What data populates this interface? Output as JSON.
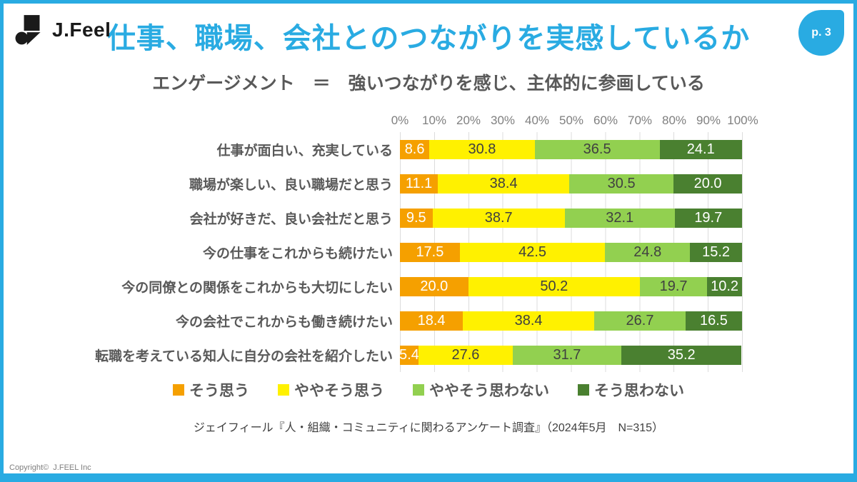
{
  "header": {
    "logo_text": "J.Feel",
    "title": "仕事、職場、会社とのつながりを実感しているか",
    "page_badge": "p. 3"
  },
  "subtitle": "エンゲージメント　＝　強いつながりを感じ、主体的に参画している",
  "chart_data": {
    "type": "bar",
    "orientation": "horizontal",
    "stacked": true,
    "unit": "%",
    "title": "仕事、職場、会社とのつながりを実感しているか",
    "xlim": [
      0,
      100
    ],
    "x_ticks": [
      "0%",
      "10%",
      "20%",
      "30%",
      "40%",
      "50%",
      "60%",
      "70%",
      "80%",
      "90%",
      "100%"
    ],
    "grid": true,
    "legend_position": "bottom",
    "value_label_decimals": 1,
    "categories": [
      "仕事が面白い、充実している",
      "職場が楽しい、良い職場だと思う",
      "会社が好きだ、良い会社だと思う",
      "今の仕事をこれからも続けたい",
      "今の同僚との関係をこれからも大切にしたい",
      "今の会社でこれからも働き続けたい",
      "転職を考えている知人に自分の会社を紹介したい"
    ],
    "series": [
      {
        "name": "そう思う",
        "color": "#F5A000",
        "label_color": "#FFFFFF",
        "values": [
          8.6,
          11.1,
          9.5,
          17.5,
          20.0,
          18.4,
          5.4
        ]
      },
      {
        "name": "ややそう思う",
        "color": "#FFF100",
        "label_color": "#404040",
        "values": [
          30.8,
          38.4,
          38.7,
          42.5,
          50.2,
          38.4,
          27.6
        ]
      },
      {
        "name": "ややそう思わない",
        "color": "#92D050",
        "label_color": "#404040",
        "values": [
          36.5,
          30.5,
          32.1,
          24.8,
          19.7,
          26.7,
          31.7
        ]
      },
      {
        "name": "そう思わない",
        "color": "#4A8030",
        "label_color": "#FFFFFF",
        "values": [
          24.1,
          20.0,
          19.7,
          15.2,
          10.2,
          16.5,
          35.2
        ]
      }
    ]
  },
  "source_note": "ジェイフィール『人・組織・コミュニティに関わるアンケート調査』（2024年5月　N=315）",
  "copyright": "Copyright©  J.FEEL Inc",
  "colors": {
    "accent": "#29ABE2",
    "gridline": "#DCDCDC",
    "text_dark": "#595959",
    "text_axis": "#7F7F7F"
  }
}
